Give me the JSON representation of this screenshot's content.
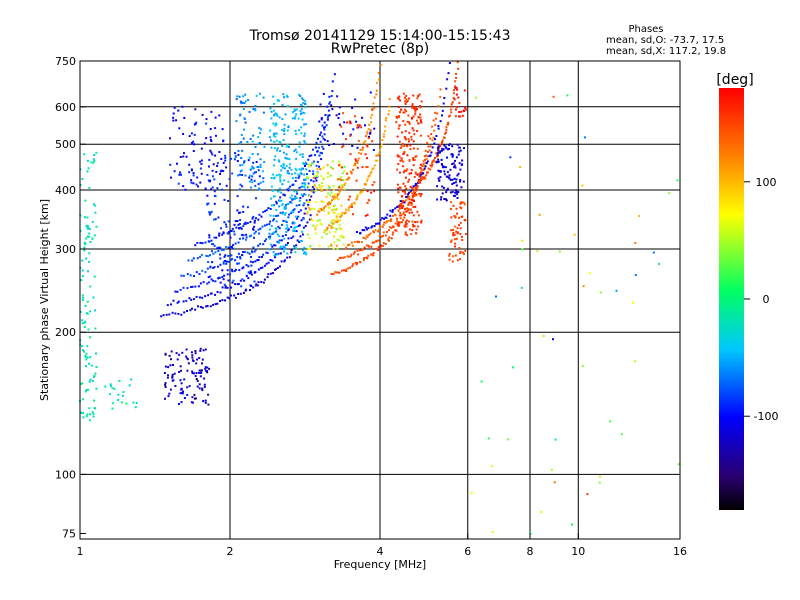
{
  "chart_data": {
    "type": "scatter",
    "title": "Tromsø 20141129 15:14:00-15:15:43",
    "subtitle": "RwPretec (8p)",
    "xlabel": "Frequency [MHz]",
    "ylabel": "Stationary phase Virtual Height [km]",
    "x_scale": "log",
    "y_scale": "log",
    "xlim": [
      1,
      16
    ],
    "ylim": [
      73,
      750
    ],
    "x_ticks": [
      1,
      2,
      4,
      6,
      8,
      10,
      16
    ],
    "x_tick_labels": [
      "1",
      "2",
      "4",
      "6",
      "8",
      "10",
      "16"
    ],
    "x_grid": [
      2,
      4,
      6,
      8,
      10
    ],
    "y_ticks": [
      75,
      100,
      200,
      300,
      400,
      500,
      600,
      750
    ],
    "y_tick_labels": [
      "75",
      "100",
      "200",
      "300",
      "400",
      "500",
      "600",
      "750"
    ],
    "y_grid": [
      100,
      200,
      300,
      400,
      500,
      600
    ],
    "grid": true,
    "stats": {
      "heading": "Phases",
      "line_o": "mean, sd,O: -73.7, 17.5",
      "line_x": "mean, sd,X: 117.2, 19.8"
    },
    "colorbar": {
      "label": "[deg]",
      "range": [
        -180,
        180
      ],
      "ticks": [
        100,
        0,
        -100
      ],
      "tick_labels": [
        "100",
        "0",
        "-100"
      ],
      "colormap": [
        "#000000",
        "#2a0070",
        "#0000ff",
        "#00c8ff",
        "#00ff60",
        "#ffff00",
        "#ff7f00",
        "#ff0000"
      ]
    },
    "series": [
      {
        "kind": "curve",
        "f_from": 1.45,
        "f_to": 2.9,
        "fc": 3.3,
        "h0": 200,
        "k": 0.7,
        "phase": -115,
        "spread": 10
      },
      {
        "kind": "curve",
        "f_from": 1.5,
        "f_to": 3.0,
        "fc": 3.3,
        "h0": 210,
        "k": 0.75,
        "phase": -105,
        "spread": 10
      },
      {
        "kind": "curve",
        "f_from": 1.55,
        "f_to": 3.1,
        "fc": 3.35,
        "h0": 222,
        "k": 0.8,
        "phase": -95,
        "spread": 10
      },
      {
        "kind": "curve",
        "f_from": 1.6,
        "f_to": 3.15,
        "fc": 3.4,
        "h0": 236,
        "k": 0.85,
        "phase": -85,
        "spread": 12
      },
      {
        "kind": "curve",
        "f_from": 1.65,
        "f_to": 3.2,
        "fc": 3.45,
        "h0": 252,
        "k": 0.9,
        "phase": -80,
        "spread": 14
      },
      {
        "kind": "curve",
        "f_from": 1.7,
        "f_to": 3.25,
        "fc": 3.5,
        "h0": 270,
        "k": 0.95,
        "phase": -95,
        "spread": 15
      },
      {
        "kind": "curve",
        "f_from": 3.2,
        "f_to": 5.0,
        "fc": 5.25,
        "h0": 232,
        "k": 0.55,
        "phase": 150,
        "spread": 12
      },
      {
        "kind": "curve",
        "f_from": 3.3,
        "f_to": 5.15,
        "fc": 5.4,
        "h0": 245,
        "k": 0.6,
        "phase": 145,
        "spread": 12
      },
      {
        "kind": "curve",
        "f_from": 3.4,
        "f_to": 5.3,
        "fc": 5.55,
        "h0": 258,
        "k": 0.65,
        "phase": 135,
        "spread": 14
      },
      {
        "kind": "curve",
        "f_from": 3.1,
        "f_to": 4.2,
        "fc": 4.45,
        "h0": 258,
        "k": 0.7,
        "phase": 110,
        "spread": 18
      },
      {
        "kind": "curve",
        "f_from": 3.0,
        "f_to": 4.0,
        "fc": 4.2,
        "h0": 270,
        "k": 0.75,
        "phase": 125,
        "spread": 18
      },
      {
        "kind": "curve",
        "f_from": 3.6,
        "f_to": 5.6,
        "fc": 5.75,
        "h0": 270,
        "k": 0.7,
        "phase": -110,
        "spread": 10
      },
      {
        "kind": "curve",
        "f_from": 4.8,
        "f_to": 5.85,
        "fc": 5.95,
        "h0": 300,
        "k": 0.55,
        "phase": 150,
        "spread": 10
      },
      {
        "kind": "blob",
        "x": [
          1.0,
          1.08
        ],
        "y": [
          130,
          480
        ],
        "phase": -20,
        "spread": 15,
        "n": 120
      },
      {
        "kind": "blob",
        "x": [
          1.12,
          1.3
        ],
        "y": [
          135,
          160
        ],
        "phase": -20,
        "spread": 20,
        "n": 20
      },
      {
        "kind": "blob",
        "x": [
          1.48,
          1.82
        ],
        "y": [
          140,
          185
        ],
        "phase": -120,
        "spread": 25,
        "n": 110
      },
      {
        "kind": "blob",
        "x": [
          1.5,
          1.95
        ],
        "y": [
          400,
          600
        ],
        "phase": -105,
        "spread": 20,
        "n": 90
      },
      {
        "kind": "blob",
        "x": [
          1.8,
          2.3
        ],
        "y": [
          250,
          480
        ],
        "phase": -90,
        "spread": 18,
        "n": 160
      },
      {
        "kind": "blob",
        "x": [
          2.05,
          2.35
        ],
        "y": [
          400,
          640
        ],
        "phase": -60,
        "spread": 20,
        "n": 80
      },
      {
        "kind": "blob",
        "x": [
          2.4,
          2.85
        ],
        "y": [
          290,
          640
        ],
        "phase": -45,
        "spread": 15,
        "n": 260
      },
      {
        "kind": "blob",
        "x": [
          2.85,
          3.4
        ],
        "y": [
          300,
          460
        ],
        "phase": 70,
        "spread": 45,
        "n": 150
      },
      {
        "kind": "blob",
        "x": [
          3.0,
          3.9
        ],
        "y": [
          480,
          650
        ],
        "phase": -110,
        "spread": 15,
        "n": 40
      },
      {
        "kind": "blob",
        "x": [
          3.3,
          3.9
        ],
        "y": [
          350,
          600
        ],
        "phase": 160,
        "spread": 20,
        "n": 50
      },
      {
        "kind": "blob",
        "x": [
          4.3,
          4.85
        ],
        "y": [
          320,
          640
        ],
        "phase": 160,
        "spread": 15,
        "n": 220
      },
      {
        "kind": "blob",
        "x": [
          5.2,
          5.9
        ],
        "y": [
          380,
          500
        ],
        "phase": -115,
        "spread": 10,
        "n": 110
      },
      {
        "kind": "blob",
        "x": [
          5.5,
          5.95
        ],
        "y": [
          280,
          380
        ],
        "phase": 150,
        "spread": 12,
        "n": 60
      },
      {
        "kind": "blob",
        "x": [
          5.6,
          5.95
        ],
        "y": [
          560,
          660
        ],
        "phase": 170,
        "spread": 20,
        "n": 20
      },
      {
        "kind": "scatter",
        "x": [
          6.0,
          16.0
        ],
        "y": [
          75,
          650
        ],
        "phase": 50,
        "spread": 120,
        "n": 50
      }
    ]
  }
}
